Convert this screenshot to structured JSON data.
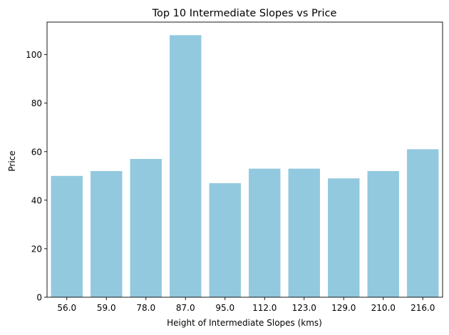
{
  "chart_data": {
    "type": "bar",
    "title": "Top 10 Intermediate Slopes vs Price",
    "xlabel": "Height of Intermediate Slopes (kms)",
    "ylabel": "Price",
    "categories": [
      "56.0",
      "59.0",
      "78.0",
      "87.0",
      "95.0",
      "112.0",
      "123.0",
      "129.0",
      "210.0",
      "216.0"
    ],
    "values": [
      50,
      52,
      57,
      108,
      47,
      53,
      53,
      49,
      52,
      61
    ],
    "ylim": [
      0,
      113.4
    ],
    "yticks": [
      0,
      20,
      40,
      60,
      80,
      100
    ],
    "grid": false,
    "bar_color": "#92c9df"
  }
}
